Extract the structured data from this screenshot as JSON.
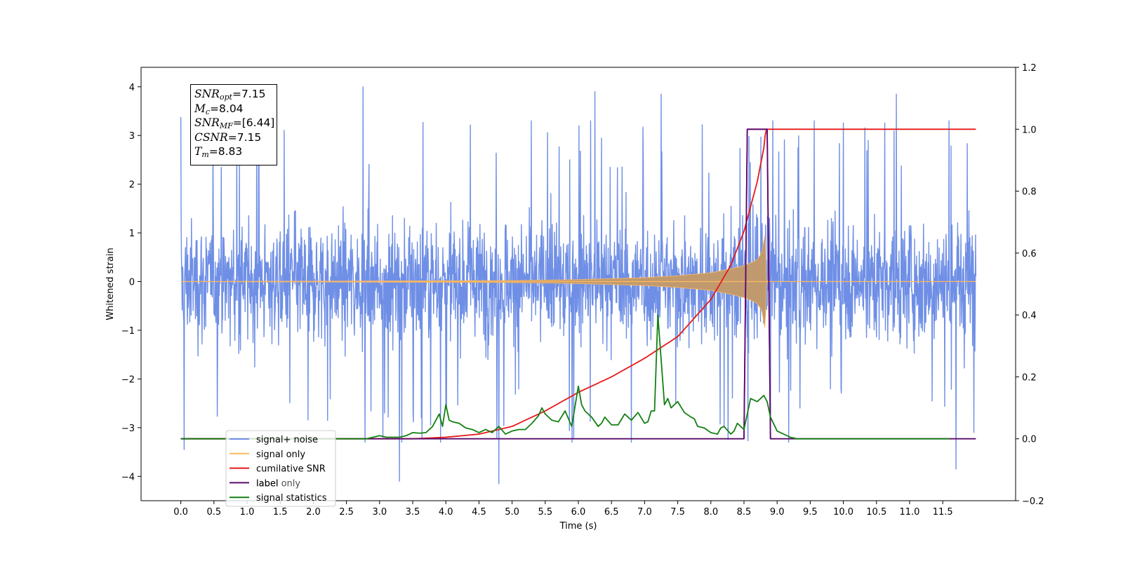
{
  "chart_data": {
    "type": "line",
    "xlabel": "Time (s)",
    "ylabel": "Whitened strain",
    "xlim": [
      -0.6,
      12.6
    ],
    "ylim": [
      -4.5,
      4.4
    ],
    "y2lim": [
      -0.2,
      1.2
    ],
    "x_ticks": [
      "0.0",
      "0.5",
      "1.0",
      "1.5",
      "2.0",
      "2.5",
      "3.0",
      "3.5",
      "4.0",
      "4.5",
      "5.0",
      "5.5",
      "6.0",
      "6.5",
      "7.0",
      "7.5",
      "8.0",
      "8.5",
      "9.0",
      "9.5",
      "10.0",
      "10.5",
      "11.0",
      "11.5"
    ],
    "y_ticks": [
      "4",
      "3",
      "2",
      "1",
      "0",
      "−1",
      "−2",
      "−3",
      "−4"
    ],
    "y2_ticks": [
      "1.2",
      "1.0",
      "0.8",
      "0.6",
      "0.4",
      "0.2",
      "0.0",
      "−0.2"
    ],
    "legend_location": "lower left",
    "grid": false,
    "series": [
      {
        "name": "signal+ noise",
        "axis": "left",
        "color": "#6f8fe6",
        "description": "noise-dominated whitened strain, roughly ±2 with spikes to about ±4",
        "t_range": [
          0.0,
          12.0
        ],
        "typical_band": [
          -2.0,
          2.0
        ],
        "peaks": [
          [
            0.0,
            3.38
          ],
          [
            2.75,
            4.0
          ],
          [
            6.25,
            3.9
          ],
          [
            7.25,
            3.85
          ],
          [
            10.8,
            3.85
          ],
          [
            0.05,
            -3.45
          ],
          [
            3.3,
            -4.1
          ],
          [
            4.8,
            -4.15
          ],
          [
            11.7,
            -3.85
          ]
        ]
      },
      {
        "name": "signal only",
        "axis": "left",
        "color": "#ffb860",
        "description": "chirp signal whose envelope grows toward merger at ~8.83 s",
        "t": [
          0.0,
          5.0,
          6.0,
          7.0,
          7.5,
          8.0,
          8.3,
          8.5,
          8.6,
          8.7,
          8.77,
          8.82,
          8.84,
          8.86,
          12.0
        ],
        "amplitude": [
          0.0,
          0.02,
          0.04,
          0.08,
          0.12,
          0.18,
          0.26,
          0.33,
          0.38,
          0.45,
          0.6,
          1.0,
          0.05,
          0.0,
          0.0
        ]
      },
      {
        "name": "cumilative SNR",
        "axis": "right",
        "color": "#e81818",
        "t": [
          0.0,
          3.5,
          4.0,
          4.5,
          5.0,
          5.5,
          6.0,
          6.5,
          7.0,
          7.5,
          8.0,
          8.3,
          8.5,
          8.7,
          8.8,
          8.83,
          12.0
        ],
        "v": [
          0.0,
          0.0,
          0.005,
          0.015,
          0.04,
          0.09,
          0.15,
          0.2,
          0.26,
          0.33,
          0.45,
          0.56,
          0.67,
          0.83,
          0.94,
          1.0,
          1.0
        ]
      },
      {
        "name": "label",
        "axis": "right",
        "color": "#5a0a6a",
        "t": [
          0.0,
          8.5,
          8.55,
          8.85,
          8.9,
          12.0
        ],
        "v": [
          0.0,
          0.0,
          1.0,
          1.0,
          0.0,
          0.0
        ]
      },
      {
        "name": "label only",
        "axis": "right",
        "color": "#9a20c8",
        "t": [
          8.5,
          8.55,
          8.85,
          8.9
        ],
        "v": [
          0.0,
          1.0,
          1.0,
          0.0
        ]
      },
      {
        "name": "signal statistics",
        "axis": "right",
        "color": "#138013",
        "t": [
          0.0,
          2.8,
          2.9,
          3.0,
          3.1,
          3.3,
          3.4,
          3.5,
          3.6,
          3.7,
          3.8,
          3.9,
          3.95,
          4.0,
          4.05,
          4.1,
          4.2,
          4.3,
          4.4,
          4.5,
          4.6,
          4.7,
          4.8,
          4.9,
          5.0,
          5.1,
          5.2,
          5.3,
          5.4,
          5.45,
          5.5,
          5.6,
          5.7,
          5.8,
          5.9,
          6.0,
          6.05,
          6.1,
          6.2,
          6.3,
          6.35,
          6.4,
          6.5,
          6.6,
          6.7,
          6.75,
          6.8,
          6.9,
          7.0,
          7.05,
          7.1,
          7.15,
          7.2,
          7.3,
          7.35,
          7.4,
          7.5,
          7.6,
          7.7,
          7.75,
          7.8,
          7.9,
          8.0,
          8.1,
          8.15,
          8.2,
          8.3,
          8.35,
          8.4,
          8.5,
          8.6,
          8.7,
          8.8,
          8.85,
          8.9,
          9.0,
          9.1,
          9.2,
          9.3,
          9.4,
          9.5,
          11.0,
          11.6
        ],
        "v": [
          0.0,
          0.0,
          0.005,
          0.01,
          0.005,
          0.005,
          0.01,
          0.02,
          0.018,
          0.02,
          0.04,
          0.08,
          0.04,
          0.11,
          0.06,
          0.055,
          0.05,
          0.035,
          0.03,
          0.02,
          0.03,
          0.02,
          0.04,
          0.015,
          0.025,
          0.03,
          0.03,
          0.05,
          0.075,
          0.1,
          0.08,
          0.06,
          0.055,
          0.09,
          0.04,
          0.17,
          0.11,
          0.09,
          0.07,
          0.04,
          0.05,
          0.07,
          0.045,
          0.045,
          0.08,
          0.07,
          0.06,
          0.085,
          0.05,
          0.055,
          0.09,
          0.09,
          0.4,
          0.11,
          0.13,
          0.1,
          0.12,
          0.085,
          0.07,
          0.065,
          0.04,
          0.035,
          0.02,
          0.015,
          0.035,
          0.04,
          0.015,
          0.025,
          0.05,
          0.03,
          0.13,
          0.12,
          0.14,
          0.12,
          0.07,
          0.025,
          0.015,
          0.005,
          0.0,
          0.0,
          0.0,
          0.0,
          0.0
        ]
      }
    ]
  },
  "stats_box": {
    "snr_opt": {
      "sym": "SNR",
      "sub": "opt",
      "value": "=7.15"
    },
    "mc": {
      "sym": "M",
      "sub": "c",
      "value": "=8.04"
    },
    "snr_mf": {
      "sym": "SNR",
      "sub": "MF",
      "value": "=[6.44]"
    },
    "csnr": {
      "sym": "CSNR",
      "value": "=7.15"
    },
    "tm": {
      "sym": "T",
      "sub": "m",
      "value": "=8.83"
    }
  }
}
